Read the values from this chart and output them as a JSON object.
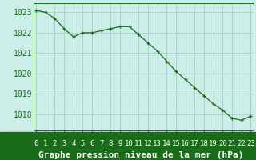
{
  "x": [
    0,
    1,
    2,
    3,
    4,
    5,
    6,
    7,
    8,
    9,
    10,
    11,
    12,
    13,
    14,
    15,
    16,
    17,
    18,
    19,
    20,
    21,
    22,
    23
  ],
  "y": [
    1023.1,
    1023.0,
    1022.7,
    1022.2,
    1021.8,
    1022.0,
    1022.0,
    1022.1,
    1022.2,
    1022.3,
    1022.3,
    1021.9,
    1021.5,
    1021.1,
    1020.6,
    1020.1,
    1019.7,
    1019.3,
    1018.9,
    1018.5,
    1018.2,
    1017.8,
    1017.7,
    1017.9
  ],
  "ylim": [
    1017.2,
    1023.45
  ],
  "yticks": [
    1018,
    1019,
    1020,
    1021,
    1022,
    1023
  ],
  "xticks": [
    0,
    1,
    2,
    3,
    4,
    5,
    6,
    7,
    8,
    9,
    10,
    11,
    12,
    13,
    14,
    15,
    16,
    17,
    18,
    19,
    20,
    21,
    22,
    23
  ],
  "xlabel": "Graphe pression niveau de la mer (hPa)",
  "line_color": "#1a6b1a",
  "marker": "+",
  "marker_color": "#1a6b1a",
  "plot_bg_color": "#cceee8",
  "fig_bg_color": "#cceee8",
  "bottom_bar_color": "#1a6b1a",
  "grid_color": "#aad4cc",
  "tick_label_color": "#1a6b1a",
  "xlabel_color": "#ffffff",
  "xtick_label_color": "#ffffff",
  "xlabel_fontsize": 8,
  "ytick_fontsize": 7,
  "xtick_fontsize": 6.5,
  "bottom_bar_height": 0.175
}
